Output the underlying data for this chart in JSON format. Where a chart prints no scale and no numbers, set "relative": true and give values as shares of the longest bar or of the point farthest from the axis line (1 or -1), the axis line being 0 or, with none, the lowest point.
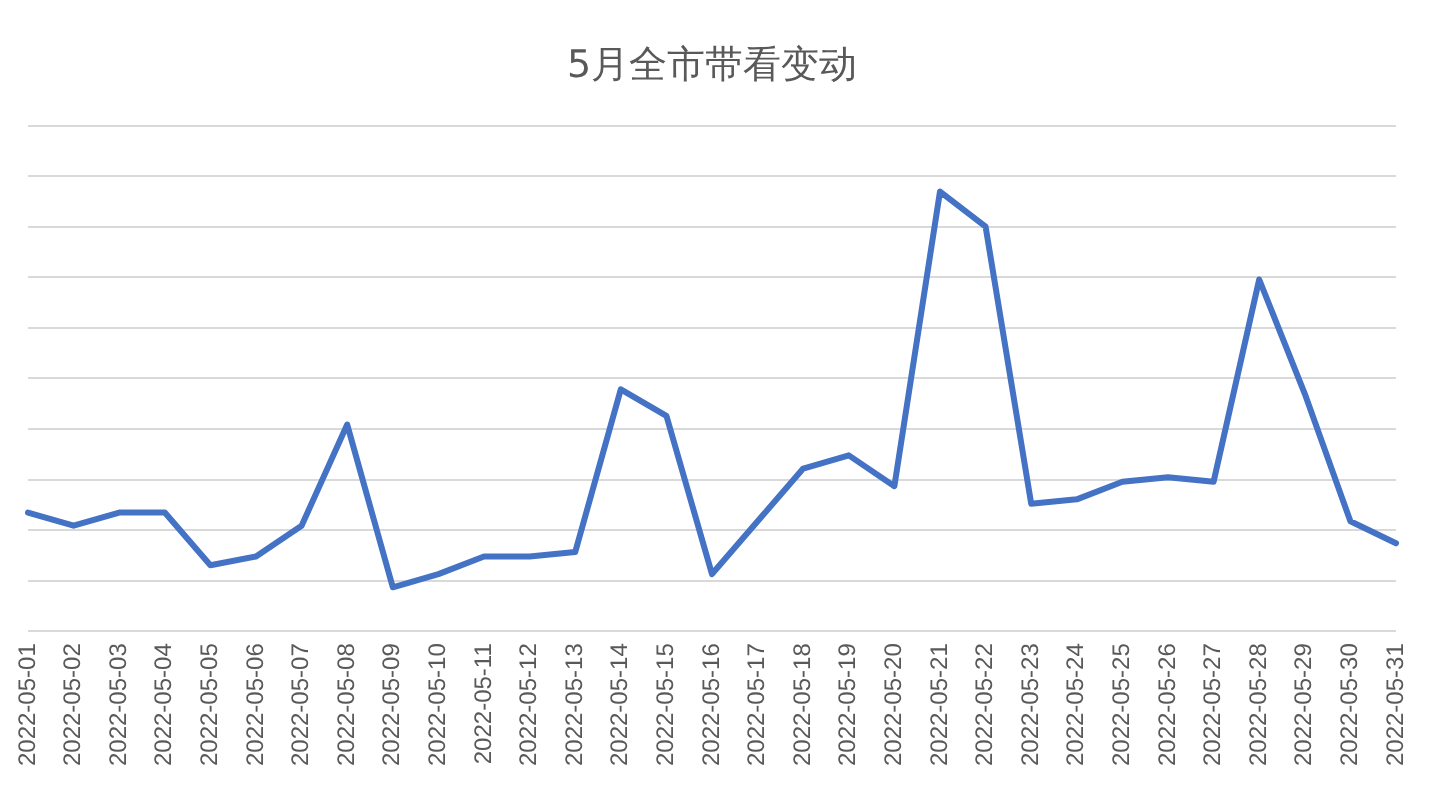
{
  "chart_data": {
    "type": "line",
    "title": "5月全市带看变动",
    "relative": true,
    "grid": "y",
    "legend": false,
    "marker": "none",
    "line_style": "solid",
    "categories": [
      "2022-05-01",
      "2022-05-02",
      "2022-05-03",
      "2022-05-04",
      "2022-05-05",
      "2022-05-06",
      "2022-05-07",
      "2022-05-08",
      "2022-05-09",
      "2022-05-10",
      "2022-05-11",
      "2022-05-12",
      "2022-05-13",
      "2022-05-14",
      "2022-05-15",
      "2022-05-16",
      "2022-05-17",
      "2022-05-18",
      "2022-05-19",
      "2022-05-20",
      "2022-05-21",
      "2022-05-22",
      "2022-05-23",
      "2022-05-24",
      "2022-05-25",
      "2022-05-26",
      "2022-05-27",
      "2022-05-28",
      "2022-05-29",
      "2022-05-30",
      "2022-05-31"
    ],
    "series": [
      {
        "color": "#4472c4",
        "values": [
          0.27,
          0.24,
          0.27,
          0.27,
          0.15,
          0.17,
          0.24,
          0.47,
          0.1,
          0.13,
          0.17,
          0.17,
          0.18,
          0.55,
          0.49,
          0.13,
          0.25,
          0.37,
          0.4,
          0.33,
          1,
          0.92,
          0.29,
          0.3,
          0.34,
          0.35,
          0.34,
          0.8,
          0.54,
          0.25,
          0.2
        ]
      }
    ]
  }
}
